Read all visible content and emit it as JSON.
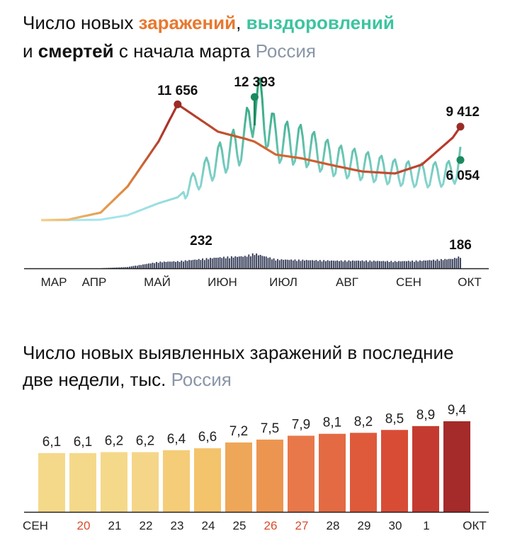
{
  "chart1": {
    "title_parts": {
      "prefix": "Число новых ",
      "infections": "заражений",
      "comma": ", ",
      "recoveries": "выздоровлений",
      "line2_prefix": "и ",
      "deaths": "смертей",
      "line2_suffix": " с начала марта",
      "region": "Россия"
    },
    "annotations": {
      "infections_peak": "11 656",
      "recoveries_peak": "12 393",
      "infections_last": "9 412",
      "recoveries_last": "6 054",
      "deaths_peak": "232",
      "deaths_last": "186"
    },
    "x_ticks": [
      "МАР",
      "АПР",
      "МАЙ",
      "ИЮН",
      "ИЮЛ",
      "АВГ",
      "СЕН",
      "ОКТ"
    ],
    "colors": {
      "infections": "#e8782e",
      "recoveries": "#3cc4a0",
      "deaths": "#2b3350"
    }
  },
  "chart_data": [
    {
      "type": "line",
      "x": [
        "2020-03-01",
        "2020-03-15",
        "2020-04-01",
        "2020-04-15",
        "2020-05-01",
        "2020-05-11",
        "2020-06-01",
        "2020-06-15",
        "2020-06-20",
        "2020-07-01",
        "2020-07-15",
        "2020-08-01",
        "2020-08-15",
        "2020-09-01",
        "2020-09-15",
        "2020-10-01",
        "2020-10-05"
      ],
      "series": [
        {
          "name": "заражений",
          "values": [
            5,
            50,
            770,
            3400,
            7900,
            11656,
            8900,
            8200,
            7900,
            6600,
            6200,
            5460,
            4900,
            4700,
            5600,
            8300,
            9412
          ]
        },
        {
          "name": "выздоровлений",
          "values": [
            0,
            10,
            50,
            500,
            1700,
            2300,
            6000,
            8000,
            12393,
            8000,
            7500,
            6000,
            5500,
            4800,
            4500,
            4700,
            6054
          ]
        },
        {
          "name": "смертей",
          "values": [
            0,
            0,
            2,
            20,
            100,
            110,
            170,
            190,
            232,
            140,
            130,
            120,
            120,
            110,
            120,
            150,
            186
          ]
        }
      ],
      "xlabel": "",
      "ylabel": "",
      "legend": "title"
    },
    {
      "type": "bar",
      "title": "Число новых выявленных заражений в последние две недели, тыс.",
      "region": "Россия",
      "categories": [
        "20",
        "21",
        "22",
        "23",
        "24",
        "25",
        "26",
        "27",
        "28",
        "29",
        "30",
        "1",
        "",
        ""
      ],
      "values": [
        6.1,
        6.1,
        6.2,
        6.2,
        6.4,
        6.6,
        7.2,
        7.5,
        7.9,
        8.1,
        8.2,
        8.5,
        8.9,
        9.4
      ],
      "value_labels": [
        "6,1",
        "6,1",
        "6,2",
        "6,2",
        "6,4",
        "6,6",
        "7,2",
        "7,5",
        "7,9",
        "8,1",
        "8,2",
        "8,5",
        "8,9",
        "9,4"
      ],
      "x_tick_labels": [
        {
          "text": "СЕН",
          "weekend": false
        },
        {
          "text": "20",
          "weekend": true
        },
        {
          "text": "21",
          "weekend": false
        },
        {
          "text": "22",
          "weekend": false
        },
        {
          "text": "23",
          "weekend": false
        },
        {
          "text": "24",
          "weekend": false
        },
        {
          "text": "25",
          "weekend": false
        },
        {
          "text": "26",
          "weekend": true
        },
        {
          "text": "27",
          "weekend": true
        },
        {
          "text": "28",
          "weekend": false
        },
        {
          "text": "29",
          "weekend": false
        },
        {
          "text": "30",
          "weekend": false
        },
        {
          "text": "1",
          "weekend": false
        },
        {
          "text": "ОКТ",
          "weekend": false
        }
      ],
      "bar_colors": [
        "#f5d98a",
        "#f5d98a",
        "#f5d98a",
        "#f5d689",
        "#f5cc78",
        "#f3c46c",
        "#eea759",
        "#ec9550",
        "#e8784a",
        "#e36a42",
        "#de5a3a",
        "#d84c36",
        "#c43a30",
        "#a52a2a"
      ],
      "weekend_color": "#d94b2b"
    }
  ]
}
